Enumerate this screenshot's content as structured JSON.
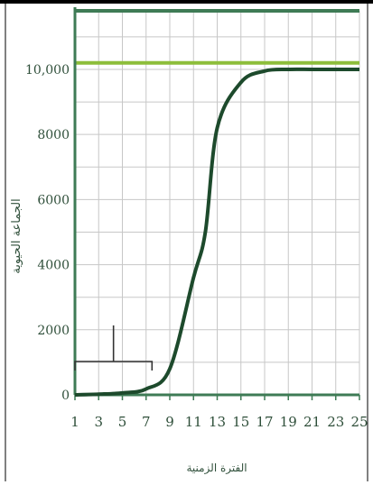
{
  "chart_data": {
    "type": "line",
    "x": [
      1,
      3,
      5,
      7,
      9,
      11,
      12,
      13,
      15,
      17,
      19,
      21,
      23,
      25
    ],
    "xticks": [
      "1",
      "3",
      "5",
      "7",
      "9",
      "11",
      "13",
      "15",
      "17",
      "19",
      "21",
      "23",
      "25"
    ],
    "xlim": [
      1,
      25
    ],
    "yticks": [
      "0",
      "2000",
      "4000",
      "6000",
      "8000",
      "10,000"
    ],
    "ylim": [
      0,
      11800
    ],
    "xlabel": "الفترة الزمنية",
    "ylabel": "الجماعة الحيوية",
    "series": [
      {
        "values": [
          0,
          20,
          60,
          180,
          800,
          3600,
          5000,
          8200,
          9600,
          9950,
          10000,
          10000,
          10000,
          10000
        ]
      }
    ],
    "reference_line": {
      "y": 10200
    },
    "bracket": {
      "x_from": 1,
      "x_to": 7.5
    },
    "grid": true,
    "colors": {
      "curve": "#1d4a2c",
      "reference_line": "#8dbe3a",
      "grid": "#c7c7c7",
      "axis": "#3e7b55",
      "text": "#2f4f3a"
    }
  }
}
